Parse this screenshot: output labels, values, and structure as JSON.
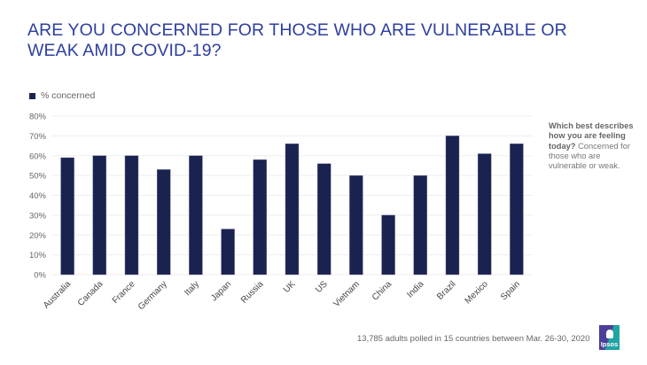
{
  "page": {
    "title_line1": "ARE YOU CONCERNED FOR THOSE WHO ARE VULNERABLE OR",
    "title_line2": "WEAK AMID COVID-19?",
    "side_note_question": "Which best describes how you are feeling today?",
    "side_note_answer": "Concerned for those who are vulnerable or weak.",
    "footnote": "13,785 adults polled in 15 countries between Mar. 26-30, 2020",
    "logo_text": "Ipsos"
  },
  "colors": {
    "title": "#2e3f9e",
    "bar": "#1a2350",
    "grid": "#eeeeee",
    "axis_text": "#666666"
  },
  "chart_data": {
    "type": "bar",
    "title": "ARE YOU CONCERNED FOR THOSE WHO ARE VULNERABLE OR WEAK AMID COVID-19?",
    "xlabel": "",
    "ylabel": "",
    "categories": [
      "Australia",
      "Canada",
      "France",
      "Germany",
      "Italy",
      "Japan",
      "Russia",
      "UK",
      "US",
      "Vietnam",
      "China",
      "India",
      "Brazil",
      "Mexico",
      "Spain"
    ],
    "series": [
      {
        "name": "% concerned",
        "values": [
          59,
          60,
          60,
          53,
          60,
          23,
          58,
          66,
          56,
          50,
          30,
          50,
          70,
          61,
          66
        ]
      }
    ],
    "ylim": [
      0,
      80
    ],
    "yticks": [
      0,
      10,
      20,
      30,
      40,
      50,
      60,
      70,
      80
    ],
    "ytick_labels": [
      "0%",
      "10%",
      "20%",
      "30%",
      "40%",
      "50%",
      "60%",
      "70%",
      "80%"
    ],
    "grid": true,
    "legend": {
      "position": "top-left",
      "entries": [
        "% concerned"
      ]
    },
    "xtick_rotation": "-45"
  }
}
